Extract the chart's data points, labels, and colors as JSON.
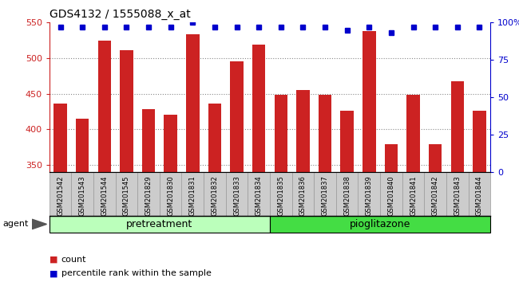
{
  "title": "GDS4132 / 1555088_x_at",
  "samples": [
    "GSM201542",
    "GSM201543",
    "GSM201544",
    "GSM201545",
    "GSM201829",
    "GSM201830",
    "GSM201831",
    "GSM201832",
    "GSM201833",
    "GSM201834",
    "GSM201835",
    "GSM201836",
    "GSM201837",
    "GSM201838",
    "GSM201839",
    "GSM201840",
    "GSM201841",
    "GSM201842",
    "GSM201843",
    "GSM201844"
  ],
  "counts": [
    436,
    415,
    525,
    511,
    428,
    421,
    534,
    436,
    496,
    519,
    448,
    455,
    448,
    426,
    538,
    379,
    449,
    379,
    467,
    426
  ],
  "percentiles": [
    97,
    97,
    97,
    97,
    97,
    97,
    100,
    97,
    97,
    97,
    97,
    97,
    97,
    95,
    97,
    93,
    97,
    97,
    97,
    97
  ],
  "pretreatment_count": 10,
  "pioglitazone_count": 10,
  "ylim_left": [
    340,
    550
  ],
  "ylim_right": [
    0,
    100
  ],
  "yticks_left": [
    350,
    400,
    450,
    500,
    550
  ],
  "yticks_right": [
    0,
    25,
    50,
    75,
    100
  ],
  "ytick_right_labels": [
    "0",
    "25",
    "50",
    "75",
    "100%"
  ],
  "bar_color": "#cc2222",
  "dot_color": "#0000cc",
  "pretreatment_color": "#bbffbb",
  "pioglitazone_color": "#44dd44",
  "agent_label": "agent",
  "pretreatment_label": "pretreatment",
  "pioglitazone_label": "pioglitazone",
  "legend_count_label": "count",
  "legend_percentile_label": "percentile rank within the sample",
  "bar_width": 0.6,
  "grid_color": "#888888",
  "tick_bg_color": "#cccccc",
  "cell_edge_color": "#999999"
}
